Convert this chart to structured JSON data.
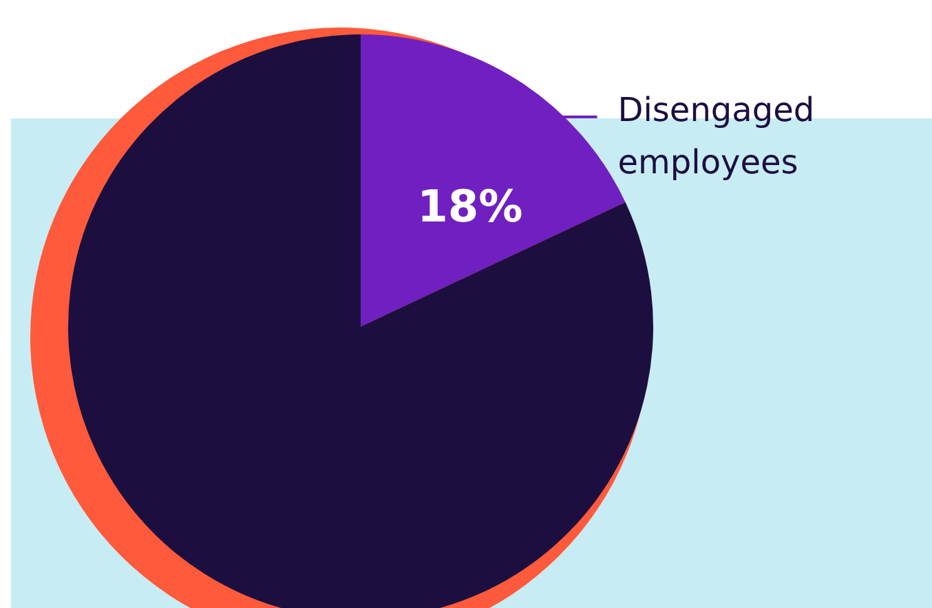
{
  "chart_data": {
    "type": "pie",
    "categories": [
      "Disengaged employees",
      null
    ],
    "values": [
      18,
      82
    ],
    "colors": [
      "#7020c0",
      "#1c0f40"
    ],
    "value_labels": [
      "18%",
      null
    ],
    "legend": false
  }
}
